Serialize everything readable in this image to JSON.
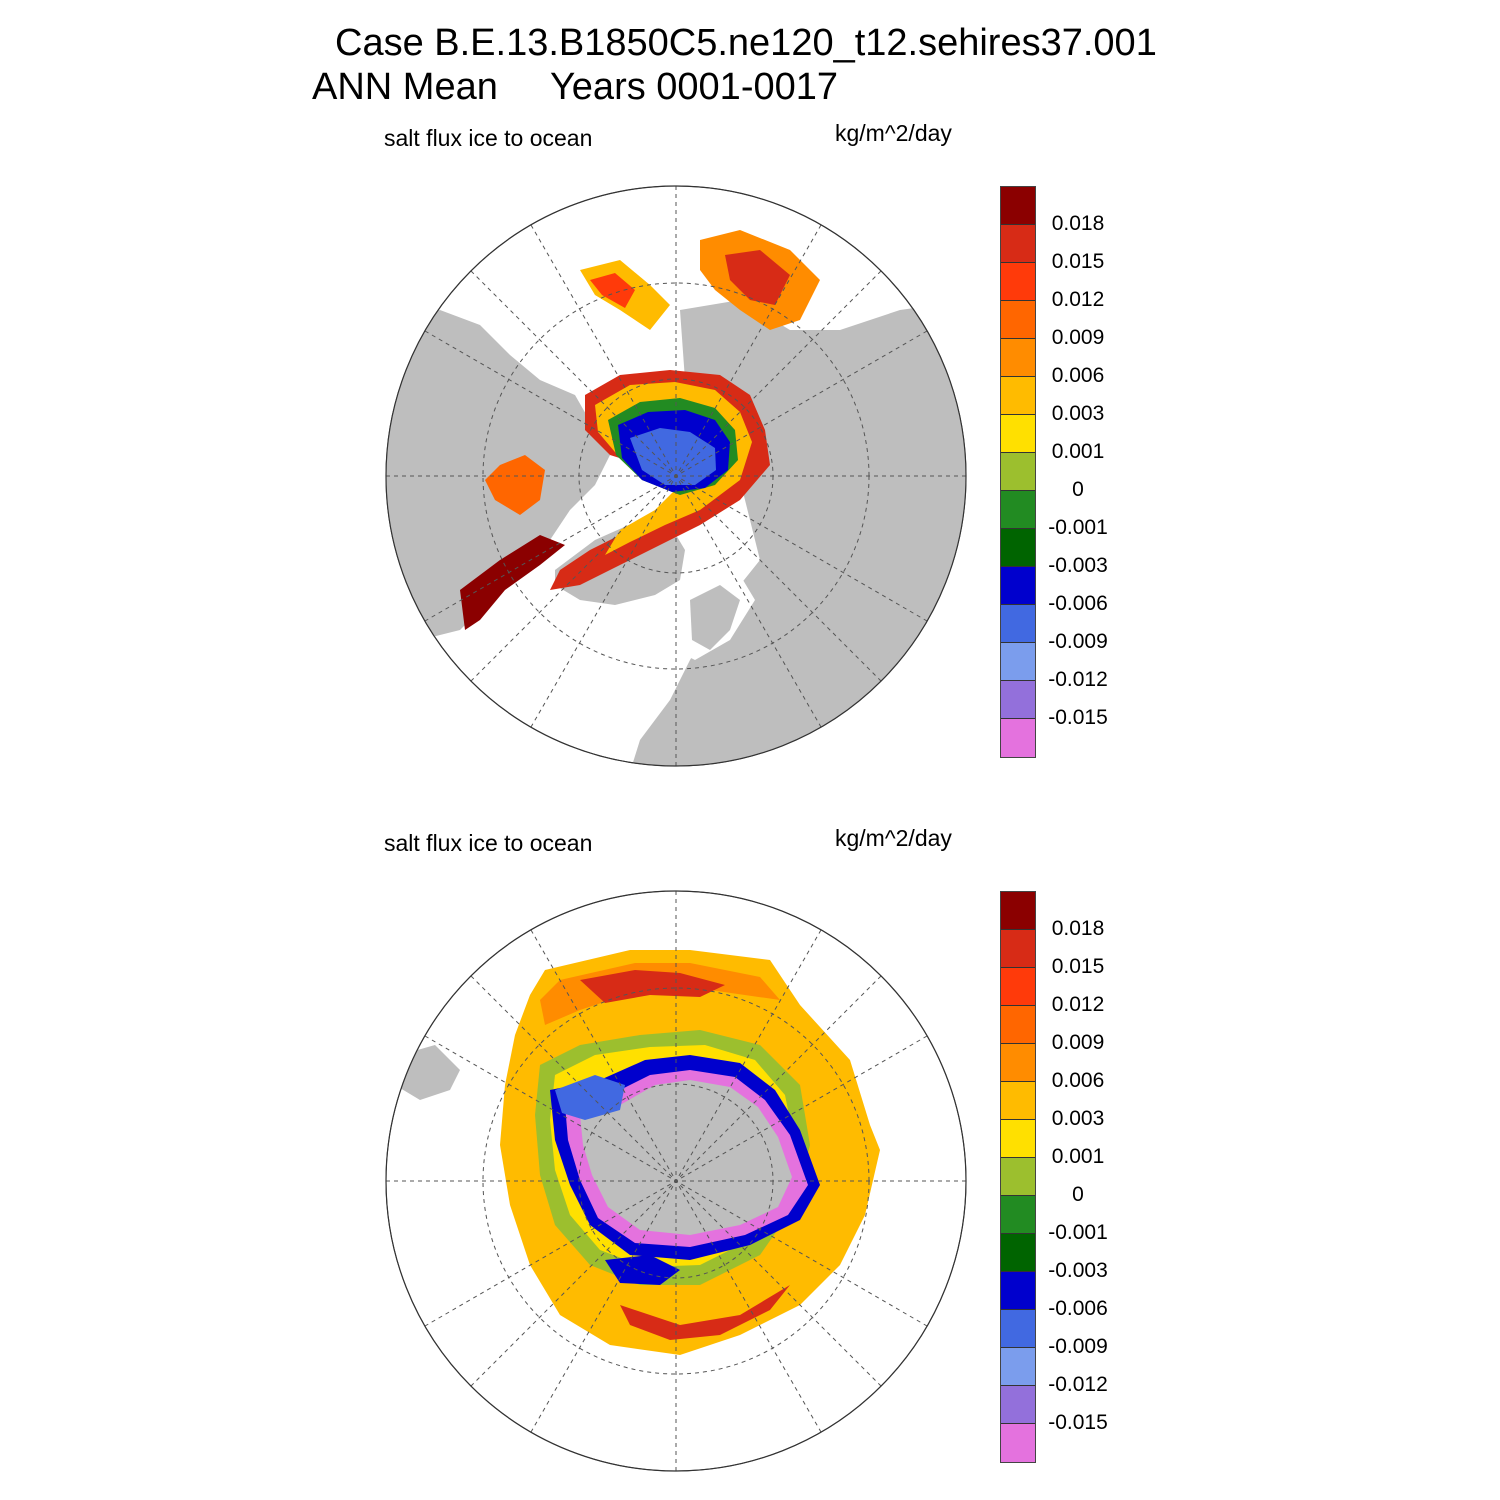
{
  "title": {
    "line1": "Case B.E.13.B1850C5.ne120_t12.sehires37.001",
    "line2": "ANN Mean     Years 0001-0017"
  },
  "panels": [
    {
      "id": "north",
      "variable_label": "salt flux ice to ocean",
      "units_label": "kg/m^2/day",
      "hemisphere": "northern (polar stereographic)"
    },
    {
      "id": "south",
      "variable_label": "salt flux ice to ocean",
      "units_label": "kg/m^2/day",
      "hemisphere": "southern (polar stereographic)"
    }
  ],
  "colorbar": {
    "levels": [
      "0.018",
      "0.015",
      "0.012",
      "0.009",
      "0.006",
      "0.003",
      "0.001",
      "0",
      "-0.001",
      "-0.003",
      "-0.006",
      "-0.009",
      "-0.012",
      "-0.015"
    ],
    "colors": [
      "#8b0000",
      "#d72b16",
      "#ff3a0a",
      "#ff6600",
      "#ff8c00",
      "#ffbb00",
      "#ffe000",
      "#9cbf2e",
      "#228b22",
      "#006400",
      "#0000cd",
      "#4169e1",
      "#7b9ded",
      "#9370db",
      "#e472de"
    ]
  },
  "colors": {
    "land": "#bebebe",
    "ocean": "#ffffff",
    "grid": "#555555"
  }
}
